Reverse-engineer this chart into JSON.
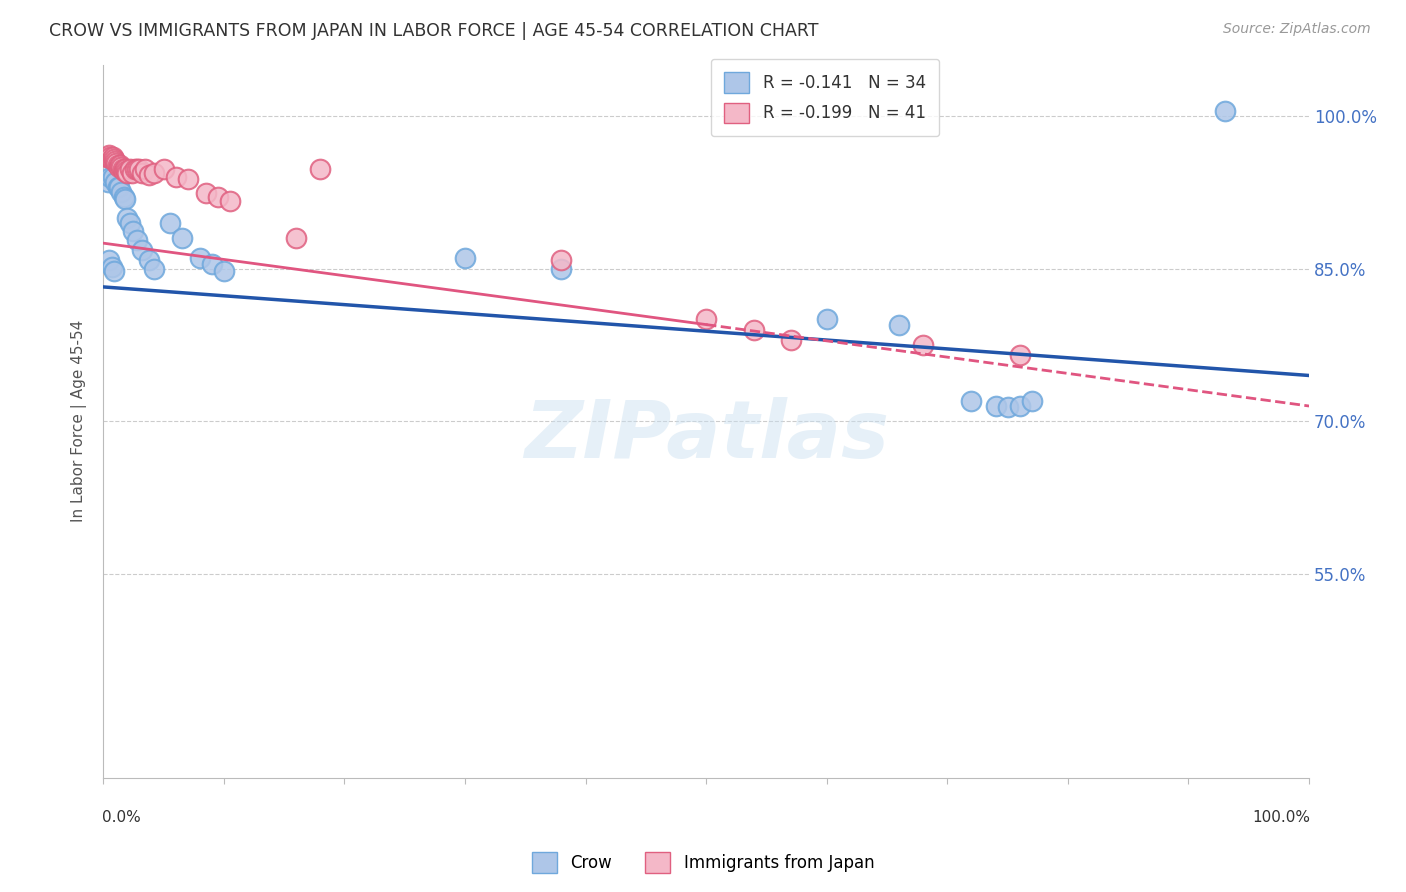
{
  "title": "CROW VS IMMIGRANTS FROM JAPAN IN LABOR FORCE | AGE 45-54 CORRELATION CHART",
  "source": "Source: ZipAtlas.com",
  "ylabel": "In Labor Force | Age 45-54",
  "legend_r_labels": [
    "R = -0.141   N = 34",
    "R = -0.199   N = 41"
  ],
  "legend_labels": [
    "Crow",
    "Immigrants from Japan"
  ],
  "xlim": [
    0.0,
    1.0
  ],
  "ylim": [
    0.35,
    1.05
  ],
  "yticks": [
    0.55,
    0.7,
    0.85,
    1.0
  ],
  "ytick_labels": [
    "55.0%",
    "70.0%",
    "85.0%",
    "100.0%"
  ],
  "watermark": "ZIPatlas",
  "background_color": "#ffffff",
  "blue_scatter_x": [
    0.004,
    0.006,
    0.008,
    0.01,
    0.012,
    0.013,
    0.015,
    0.017,
    0.018,
    0.02,
    0.022,
    0.025,
    0.028,
    0.032,
    0.038,
    0.042,
    0.055,
    0.065,
    0.08,
    0.09,
    0.1,
    0.3,
    0.38,
    0.6,
    0.66,
    0.72,
    0.74,
    0.75,
    0.76,
    0.77,
    0.93,
    0.005,
    0.007,
    0.009
  ],
  "blue_scatter_y": [
    0.935,
    0.94,
    0.94,
    0.935,
    0.93,
    0.93,
    0.925,
    0.92,
    0.918,
    0.9,
    0.895,
    0.887,
    0.878,
    0.868,
    0.858,
    0.85,
    0.895,
    0.88,
    0.86,
    0.855,
    0.848,
    0.86,
    0.85,
    0.8,
    0.795,
    0.72,
    0.715,
    0.714,
    0.715,
    0.72,
    1.005,
    0.858,
    0.852,
    0.848
  ],
  "pink_scatter_x": [
    0.003,
    0.004,
    0.005,
    0.006,
    0.007,
    0.008,
    0.009,
    0.01,
    0.011,
    0.012,
    0.013,
    0.014,
    0.015,
    0.016,
    0.017,
    0.018,
    0.019,
    0.02,
    0.022,
    0.024,
    0.026,
    0.028,
    0.03,
    0.032,
    0.035,
    0.038,
    0.042,
    0.05,
    0.06,
    0.07,
    0.085,
    0.095,
    0.105,
    0.16,
    0.18,
    0.38,
    0.5,
    0.54,
    0.57,
    0.68,
    0.76
  ],
  "pink_scatter_y": [
    0.96,
    0.96,
    0.962,
    0.96,
    0.958,
    0.96,
    0.958,
    0.956,
    0.954,
    0.952,
    0.95,
    0.952,
    0.95,
    0.948,
    0.946,
    0.948,
    0.946,
    0.944,
    0.948,
    0.944,
    0.948,
    0.948,
    0.948,
    0.944,
    0.948,
    0.942,
    0.944,
    0.948,
    0.94,
    0.938,
    0.924,
    0.92,
    0.916,
    0.88,
    0.948,
    0.858,
    0.8,
    0.79,
    0.78,
    0.775,
    0.765
  ],
  "blue_line_x0": 0.0,
  "blue_line_x1": 1.0,
  "blue_line_y0": 0.832,
  "blue_line_y1": 0.745,
  "pink_line_solid_x0": 0.0,
  "pink_line_solid_x1": 0.5,
  "pink_line_solid_y0": 0.875,
  "pink_line_solid_y1": 0.795,
  "pink_line_dash_x0": 0.5,
  "pink_line_dash_x1": 1.0,
  "pink_line_dash_y0": 0.795,
  "pink_line_dash_y1": 0.715,
  "title_color": "#333333",
  "scatter_blue_facecolor": "#aec6e8",
  "scatter_blue_edgecolor": "#6fa8dc",
  "scatter_pink_facecolor": "#f4b8c8",
  "scatter_pink_edgecolor": "#e06080",
  "line_blue_color": "#2255aa",
  "line_pink_color": "#e05580",
  "grid_color": "#cccccc",
  "axis_tick_color": "#4472c4"
}
